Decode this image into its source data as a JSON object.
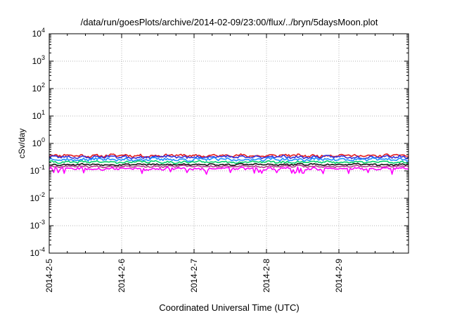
{
  "chart_data": {
    "type": "line",
    "title": "/data/run/goesPlots/archive/2014-02-09/23:00/flux/../bryn/5daysMoon.plot",
    "xlabel": "Coordinated Universal Time (UTC)",
    "ylabel": "cSv/day",
    "x_tick_labels": [
      "2014-2-5",
      "2014-2-6",
      "2014-2-7",
      "2014-2-8",
      "2014-2-9"
    ],
    "x_range_days": [
      0,
      5
    ],
    "y_scale": "log",
    "ylim": [
      0.0001,
      10000
    ],
    "y_tick_labels": [
      {
        "base": "10",
        "exp": "-4"
      },
      {
        "base": "10",
        "exp": "-3"
      },
      {
        "base": "10",
        "exp": "-2"
      },
      {
        "base": "10",
        "exp": "-1"
      },
      {
        "base": "10",
        "exp": "0"
      },
      {
        "base": "10",
        "exp": "1"
      },
      {
        "base": "10",
        "exp": "2"
      },
      {
        "base": "10",
        "exp": "3"
      },
      {
        "base": "10",
        "exp": "4"
      }
    ],
    "grid": true,
    "series": [
      {
        "color": "#e41a1c",
        "center": 0.36,
        "spread": 0.22,
        "seed": 11
      },
      {
        "color": "#3333dd",
        "center": 0.32,
        "spread": 0.22,
        "seed": 23
      },
      {
        "color": "#1e90ff",
        "center": 0.26,
        "spread": 0.25,
        "seed": 37
      },
      {
        "color": "#00d26a",
        "center": 0.21,
        "spread": 0.18,
        "seed": 41
      },
      {
        "color": "#111111",
        "center": 0.17,
        "spread": 0.14,
        "seed": 53
      },
      {
        "color": "#b03a8a",
        "center": 0.145,
        "spread": 0.14,
        "seed": 67
      },
      {
        "color": "#ff00ff",
        "center": 0.12,
        "spread": 0.22,
        "seed": 79
      }
    ]
  }
}
